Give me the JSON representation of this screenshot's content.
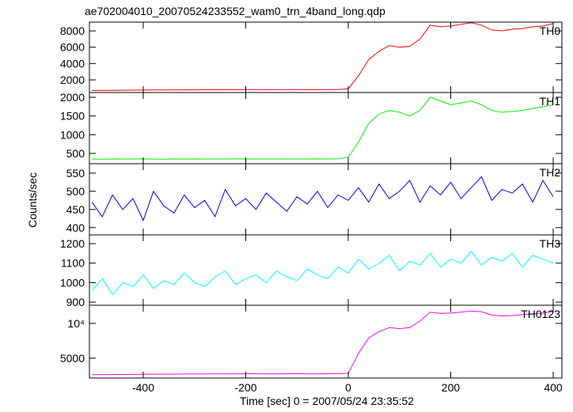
{
  "chart_data": {
    "type": "line",
    "title": "ae702004010_20070524233552_wam0_trn_4band_long.qdp",
    "xlabel": "Time [sec] 0 = 2007/05/24 23:35:52",
    "ylabel": "Counts/sec",
    "x": [
      -500,
      -480,
      -460,
      -440,
      -420,
      -400,
      -380,
      -360,
      -340,
      -320,
      -300,
      -280,
      -260,
      -240,
      -220,
      -200,
      -180,
      -160,
      -140,
      -120,
      -100,
      -80,
      -60,
      -40,
      -20,
      0,
      20,
      40,
      60,
      80,
      100,
      120,
      140,
      160,
      180,
      200,
      220,
      240,
      260,
      280,
      300,
      320,
      340,
      360,
      380,
      400
    ],
    "xlim": [
      -505,
      417
    ],
    "xticks": [
      -400,
      -200,
      0,
      200,
      400
    ],
    "series": [
      {
        "name": "TH0",
        "color": "#ff0000",
        "ylim": [
          450,
          9070
        ],
        "yticks": [
          2000,
          4000,
          6000,
          8000
        ],
        "values": [
          700,
          710,
          720,
          730,
          740,
          750,
          760,
          760,
          770,
          780,
          780,
          790,
          790,
          800,
          800,
          810,
          810,
          800,
          800,
          810,
          810,
          800,
          800,
          810,
          810,
          900,
          2500,
          4500,
          5500,
          6200,
          6000,
          6100,
          7000,
          8700,
          8500,
          8600,
          8800,
          9000,
          8700,
          8100,
          8000,
          8200,
          8300,
          8500,
          8600,
          8900
        ]
      },
      {
        "name": "TH1",
        "color": "#00ee00",
        "ylim": [
          225,
          2127
        ],
        "yticks": [
          500,
          1000,
          1500,
          2000
        ],
        "values": [
          350,
          345,
          352,
          348,
          350,
          355,
          350,
          347,
          352,
          350,
          353,
          349,
          351,
          350,
          354,
          352,
          348,
          351,
          353,
          350,
          352,
          349,
          354,
          351,
          355,
          400,
          800,
          1300,
          1550,
          1650,
          1600,
          1500,
          1650,
          2000,
          1900,
          1800,
          1850,
          1900,
          1800,
          1650,
          1600,
          1620,
          1650,
          1700,
          1750,
          1800
        ]
      },
      {
        "name": "TH2",
        "color": "#0000ee",
        "ylim": [
          380,
          576
        ],
        "yticks": [
          400,
          450,
          500,
          550
        ],
        "values": [
          470,
          430,
          490,
          450,
          480,
          420,
          500,
          460,
          440,
          490,
          455,
          475,
          430,
          505,
          460,
          480,
          450,
          495,
          470,
          445,
          485,
          465,
          500,
          455,
          490,
          475,
          510,
          470,
          520,
          480,
          500,
          530,
          470,
          515,
          490,
          525,
          480,
          510,
          540,
          475,
          505,
          495,
          520,
          470,
          530,
          485
        ]
      },
      {
        "name": "TH3",
        "color": "#00ffff",
        "ylim": [
          884,
          1245
        ],
        "yticks": [
          900,
          1000,
          1100,
          1200
        ],
        "values": [
          960,
          1020,
          940,
          1000,
          980,
          1040,
          970,
          1010,
          990,
          1050,
          1000,
          980,
          1030,
          1060,
          990,
          1020,
          1040,
          1000,
          1060,
          1030,
          1010,
          1070,
          1040,
          1020,
          1080,
          1050,
          1120,
          1070,
          1100,
          1140,
          1060,
          1110,
          1090,
          1150,
          1080,
          1120,
          1100,
          1160,
          1090,
          1130,
          1110,
          1150,
          1080,
          1140,
          1120,
          1100
        ]
      },
      {
        "name": "TH0123",
        "color": "#ff00ff",
        "ylim": [
          3370,
          14360
        ],
        "log": true,
        "yticks": [
          5000,
          {
            "value": 10000,
            "label": "10⁴"
          }
        ],
        "values": [
          3600,
          3600,
          3610,
          3620,
          3620,
          3630,
          3630,
          3640,
          3640,
          3650,
          3650,
          3650,
          3660,
          3660,
          3660,
          3670,
          3670,
          3660,
          3660,
          3670,
          3670,
          3660,
          3660,
          3670,
          3680,
          3700,
          5500,
          7500,
          8500,
          9200,
          9000,
          9200,
          10500,
          12500,
          12200,
          12300,
          12500,
          12800,
          12600,
          11800,
          11600,
          11700,
          11900,
          12100,
          12300,
          12700
        ]
      }
    ]
  }
}
